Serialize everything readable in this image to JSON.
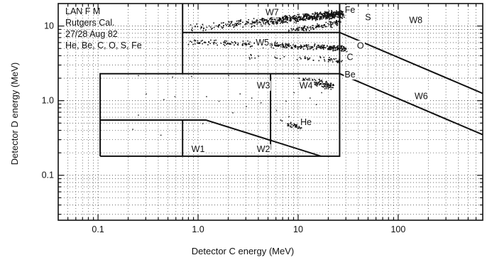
{
  "chart_data": {
    "type": "scatter",
    "title": "",
    "xlabel": "Detector C energy (MeV)",
    "ylabel": "Detector D energy (MeV)",
    "x_scale": "log",
    "y_scale": "log",
    "xlim": [
      0.04,
      700
    ],
    "ylim": [
      0.025,
      20
    ],
    "grid": true,
    "x_ticks": [
      {
        "value": 0.1,
        "label": "0.1"
      },
      {
        "value": 1,
        "label": "1.0"
      },
      {
        "value": 10,
        "label": "10"
      },
      {
        "value": 100,
        "label": "100"
      }
    ],
    "y_ticks": [
      {
        "value": 0.1,
        "label": "0.1"
      },
      {
        "value": 1,
        "label": "1.0"
      },
      {
        "value": 10,
        "label": "10"
      }
    ],
    "info_lines": [
      "LAN F M",
      "Rutgers Cal.",
      "27/28 Aug 82",
      "He, Be, C, O, S, Fe"
    ],
    "region_labels": [
      {
        "text": "W1",
        "x": 1.0,
        "y": 0.205
      },
      {
        "text": "W2",
        "x": 4.5,
        "y": 0.205
      },
      {
        "text": "W3",
        "x": 4.5,
        "y": 1.45
      },
      {
        "text": "W4",
        "x": 12,
        "y": 1.45
      },
      {
        "text": "W5",
        "x": 4.4,
        "y": 5.5
      },
      {
        "text": "W6",
        "x": 170,
        "y": 1.05
      },
      {
        "text": "W7",
        "x": 5.5,
        "y": 14
      },
      {
        "text": "W8",
        "x": 150,
        "y": 11
      }
    ],
    "species_labels": [
      {
        "text": "Fe",
        "x": 33,
        "y": 15
      },
      {
        "text": "S",
        "x": 50,
        "y": 12
      },
      {
        "text": "O",
        "x": 42,
        "y": 5.0
      },
      {
        "text": "C",
        "x": 33,
        "y": 3.5
      },
      {
        "text": "Be",
        "x": 33,
        "y": 2.05
      },
      {
        "text": "He",
        "x": 12,
        "y": 0.47
      }
    ],
    "window_lines": [
      {
        "name": "W1-W2-outer",
        "points": [
          [
            0.105,
            0.18
          ],
          [
            26,
            0.18
          ],
          [
            26,
            2.3
          ],
          [
            0.105,
            2.3
          ],
          [
            0.105,
            0.18
          ]
        ]
      },
      {
        "name": "W1-W2-upper",
        "points": [
          [
            0.105,
            0.55
          ],
          [
            1.2,
            0.55
          ],
          [
            17,
            0.18
          ]
        ]
      },
      {
        "name": "W1-W2-divider",
        "points": [
          [
            0.7,
            0.18
          ],
          [
            0.7,
            0.55
          ]
        ]
      },
      {
        "name": "W3-W4-divider",
        "points": [
          [
            5.3,
            0.22
          ],
          [
            5.3,
            2.3
          ]
        ]
      },
      {
        "name": "W5-W7-left",
        "points": [
          [
            0.7,
            2.3
          ],
          [
            0.7,
            20
          ]
        ]
      },
      {
        "name": "W5-W7-top",
        "points": [
          [
            0.7,
            8.2
          ],
          [
            26,
            8.2
          ]
        ]
      },
      {
        "name": "W5-W7-right",
        "points": [
          [
            26,
            2.3
          ],
          [
            26,
            20
          ]
        ]
      },
      {
        "name": "O-line",
        "points": [
          [
            26,
            8.2
          ],
          [
            700,
            1.25
          ]
        ]
      },
      {
        "name": "Be-line",
        "points": [
          [
            26,
            2.3
          ],
          [
            700,
            0.35
          ]
        ]
      }
    ],
    "tracks": [
      {
        "name": "Fe",
        "points": [
          [
            0.8,
            9.4
          ],
          [
            2,
            10.5
          ],
          [
            5,
            11.8
          ],
          [
            10,
            12.8
          ],
          [
            18,
            14
          ],
          [
            28,
            14.8
          ]
        ]
      },
      {
        "name": "S",
        "points": [
          [
            8,
            8.9
          ],
          [
            15,
            9.8
          ],
          [
            26,
            11.5
          ]
        ]
      },
      {
        "name": "O",
        "points": [
          [
            0.8,
            6.2
          ],
          [
            2,
            6.0
          ],
          [
            5,
            5.7
          ],
          [
            10,
            5.4
          ],
          [
            20,
            5.2
          ],
          [
            30,
            5.0
          ]
        ]
      },
      {
        "name": "C",
        "points": [
          [
            3,
            4.0
          ],
          [
            10,
            3.8
          ],
          [
            20,
            3.6
          ],
          [
            27,
            3.5
          ]
        ]
      },
      {
        "name": "Be",
        "points": [
          [
            10,
            2.0
          ],
          [
            16,
            1.75
          ],
          [
            22,
            1.55
          ]
        ]
      },
      {
        "name": "He",
        "points": [
          [
            6.5,
            0.55
          ],
          [
            9,
            0.47
          ],
          [
            11,
            0.45
          ]
        ]
      }
    ],
    "sparse_events": [
      [
        0.3,
        1.25
      ],
      [
        0.45,
        1.05
      ],
      [
        0.58,
        1.15
      ],
      [
        1.2,
        1.15
      ],
      [
        1.6,
        1.0
      ],
      [
        2.6,
        1.25
      ],
      [
        3.4,
        1.1
      ],
      [
        4.2,
        0.95
      ],
      [
        3.0,
        0.85
      ],
      [
        2.2,
        0.7
      ],
      [
        0.25,
        0.65
      ],
      [
        0.22,
        0.42
      ],
      [
        0.42,
        0.35
      ],
      [
        6.0,
        0.75
      ],
      [
        7.5,
        1.0
      ],
      [
        9.0,
        1.3
      ],
      [
        0.25,
        2.2
      ],
      [
        0.55,
        2.1
      ],
      [
        0.85,
        2.15
      ],
      [
        2.0,
        2.2
      ],
      [
        5.0,
        1.8
      ],
      [
        8.0,
        0.62
      ],
      [
        1.1,
        0.5
      ],
      [
        13,
        1.1
      ],
      [
        15,
        0.9
      ],
      [
        17,
        1.3
      ]
    ]
  }
}
